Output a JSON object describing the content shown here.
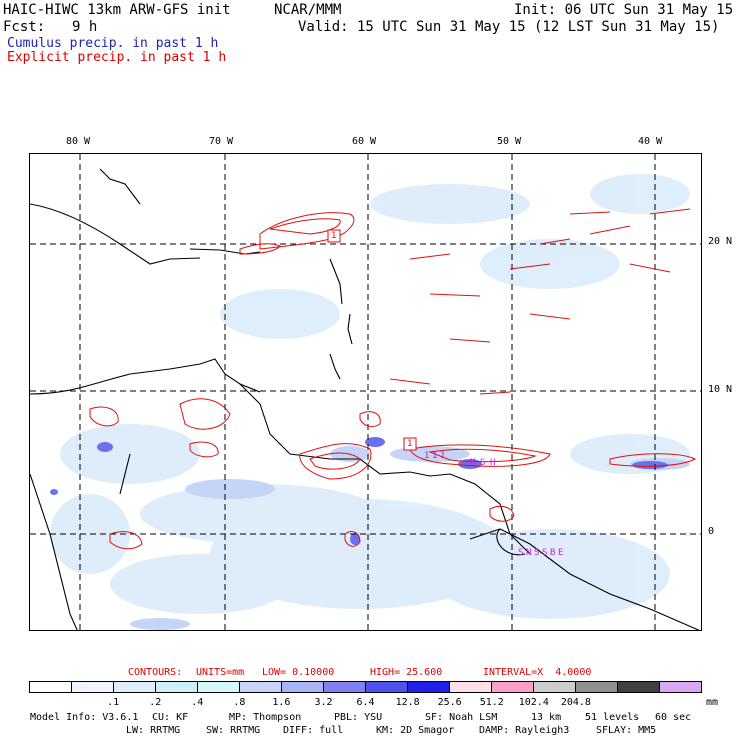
{
  "header": {
    "title": "HAIC-HIWC 13km ARW-GFS init",
    "org": "NCAR/MMM",
    "init": "Init: 06 UTC Sun 31 May 15",
    "fcst_label": "Fcst:",
    "fcst_value": "9 h",
    "valid": "Valid: 15 UTC Sun 31 May 15 (12 LST Sun 31 May 15)",
    "cumulus": "Cumulus precip. in past 1 h",
    "explicit": "Explicit precip. in past 1 h"
  },
  "colors": {
    "cumulus_text": "#2222aa",
    "explicit_text": "#dd0000",
    "contour": "#dd1111",
    "label_magenta": "#cc22cc"
  },
  "map": {
    "lon_labels": [
      "80 W",
      "70 W",
      "60 W",
      "50 W",
      "40 W"
    ],
    "lat_labels": [
      "20 N",
      "10 N",
      "0"
    ],
    "annotations": [
      "1",
      "1",
      "1",
      "S",
      "M",
      "H",
      "S",
      "N",
      "S",
      "S",
      "B",
      "E"
    ],
    "marker_labels": [
      "1",
      "1"
    ]
  },
  "contours_line": {
    "prefix": "CONTOURS:",
    "units": "UNITS=mm",
    "low": "LOW= 0.10000",
    "high": "HIGH= 25.600",
    "interval": "INTERVAL=X  4.0000"
  },
  "legend": {
    "colors": [
      "#ffffff",
      "#eef5ff",
      "#ddeefe",
      "#ccf0f8",
      "#d6f8fb",
      "#c8d4f8",
      "#a8b4f6",
      "#8080f0",
      "#5050ec",
      "#2020e8",
      "#ffe0e8",
      "#ff9fc8",
      "#cccccc",
      "#909090",
      "#404040",
      "#d8a8f4"
    ],
    "ticks": [
      ".1",
      ".2",
      ".4",
      ".8",
      "1.6",
      "3.2",
      "6.4",
      "12.8",
      "25.6",
      "51.2",
      "102.4",
      "204.8"
    ],
    "unit": "mm"
  },
  "model_info": {
    "line1": [
      "Model Info: V3.6.1",
      "CU: KF",
      "MP: Thompson",
      "PBL: YSU",
      "SF: Noah LSM",
      "13 km",
      "51 levels",
      "60 sec"
    ],
    "line2": [
      "LW: RRTMG",
      "SW: RRTMG",
      "DIFF: full",
      "KM: 2D Smagor",
      "DAMP: Rayleigh3",
      "SFLAY: MM5"
    ]
  }
}
